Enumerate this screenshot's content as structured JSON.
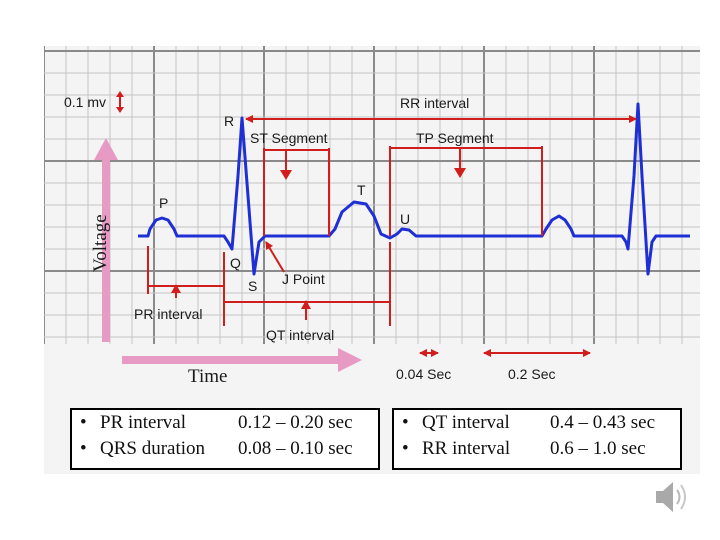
{
  "colors": {
    "trace": "#1f2fd6",
    "annotation": "#d21d1d",
    "axis_arrow": "#e69ac4",
    "grid_major": "#8a8a8a",
    "grid_minor": "#c4c4c4"
  },
  "voltage_scale": "0.1 mv",
  "axis_labels": {
    "y": "Voltage",
    "x": "Time"
  },
  "waves": {
    "p": "P",
    "q": "Q",
    "r": "R",
    "s": "S",
    "t": "T",
    "u": "U"
  },
  "annotations": {
    "rr_interval": "RR interval",
    "st_segment": "ST Segment",
    "tp_segment": "TP Segment",
    "j_point": "J Point",
    "pr_interval": "PR interval",
    "qt_interval": "QT interval"
  },
  "time_scale": {
    "small": "0.04 Sec",
    "large": "0.2 Sec"
  },
  "legend": {
    "left": [
      {
        "bullet": "•",
        "name": "PR interval",
        "value": "0.12 – 0.20 sec"
      },
      {
        "bullet": "•",
        "name": "QRS duration",
        "value": "0.08 – 0.10 sec"
      }
    ],
    "right": [
      {
        "bullet": "•",
        "name": "QT interval",
        "value": "0.4 – 0.43 sec"
      },
      {
        "bullet": "•",
        "name": "RR interval",
        "value": "0.6 – 1.0  sec"
      }
    ]
  }
}
